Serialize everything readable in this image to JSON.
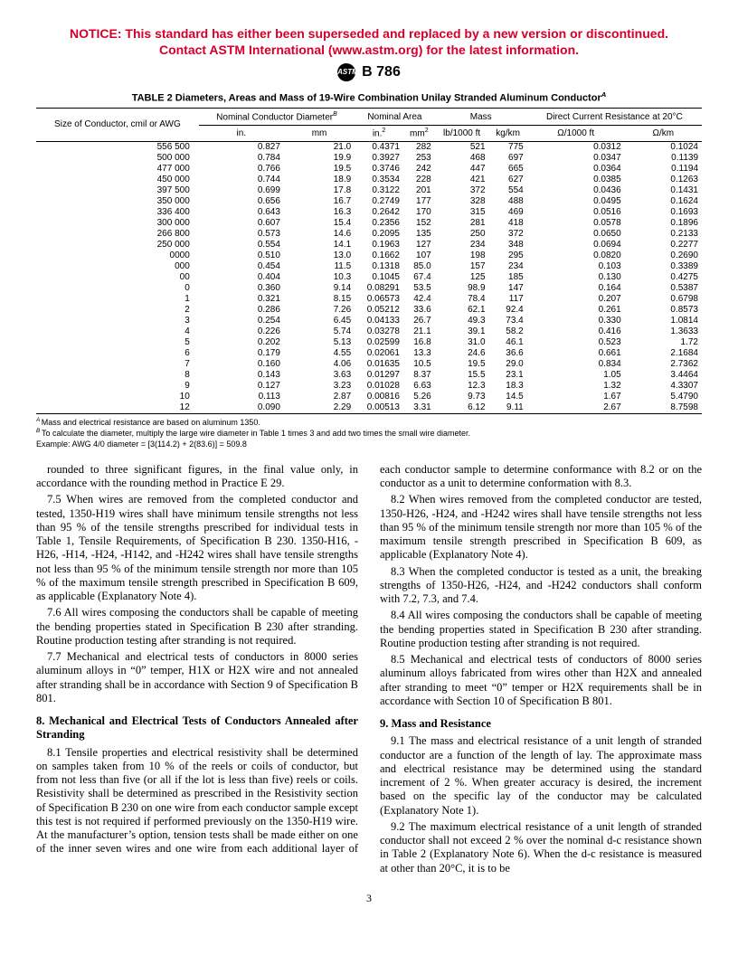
{
  "notice": {
    "line1": "NOTICE: This standard has either been superseded and replaced by a new version or discontinued.",
    "line2": "Contact ASTM International (www.astm.org) for the latest information."
  },
  "header": {
    "logo_text": "ASTM",
    "std_label": "B 786"
  },
  "table": {
    "title_pre": "TABLE 2  Diameters, Areas and Mass of 19-Wire Combination Unilay Stranded Aluminum Conductor",
    "title_sup": "A",
    "group_headers": {
      "size": "Size of Conductor, cmil or AWG",
      "diameter": "Nominal Conductor Diameter",
      "diameter_sup": "B",
      "area": "Nominal Area",
      "mass": "Mass",
      "dcr": "Direct Current Resistance at 20°C"
    },
    "unit_headers": [
      "in.",
      "mm",
      "in.²",
      "mm²",
      "lb/1000 ft",
      "kg/km",
      "Ω/1000 ft",
      "Ω/km"
    ],
    "rows": [
      [
        "556 500",
        "0.827",
        "21.0",
        "0.4371",
        "282",
        "521",
        "775",
        "0.0312",
        "0.1024"
      ],
      [
        "500 000",
        "0.784",
        "19.9",
        "0.3927",
        "253",
        "468",
        "697",
        "0.0347",
        "0.1139"
      ],
      [
        "477 000",
        "0.766",
        "19.5",
        "0.3746",
        "242",
        "447",
        "665",
        "0.0364",
        "0.1194"
      ],
      [
        "450 000",
        "0.744",
        "18.9",
        "0.3534",
        "228",
        "421",
        "627",
        "0.0385",
        "0.1263"
      ],
      [
        "397 500",
        "0.699",
        "17.8",
        "0.3122",
        "201",
        "372",
        "554",
        "0.0436",
        "0.1431"
      ],
      [
        "350 000",
        "0.656",
        "16.7",
        "0.2749",
        "177",
        "328",
        "488",
        "0.0495",
        "0.1624"
      ],
      [
        "336 400",
        "0.643",
        "16.3",
        "0.2642",
        "170",
        "315",
        "469",
        "0.0516",
        "0.1693"
      ],
      [
        "300 000",
        "0.607",
        "15.4",
        "0.2356",
        "152",
        "281",
        "418",
        "0.0578",
        "0.1896"
      ],
      [
        "266 800",
        "0.573",
        "14.6",
        "0.2095",
        "135",
        "250",
        "372",
        "0.0650",
        "0.2133"
      ],
      [
        "250 000",
        "0.554",
        "14.1",
        "0.1963",
        "127",
        "234",
        "348",
        "0.0694",
        "0.2277"
      ],
      [
        "0000",
        "0.510",
        "13.0",
        "0.1662",
        "107",
        "198",
        "295",
        "0.0820",
        "0.2690"
      ],
      [
        "000",
        "0.454",
        "11.5",
        "0.1318",
        "85.0",
        "157",
        "234",
        "0.103",
        "0.3389"
      ],
      [
        "00",
        "0.404",
        "10.3",
        "0.1045",
        "67.4",
        "125",
        "185",
        "0.130",
        "0.4275"
      ],
      [
        "0",
        "0.360",
        "9.14",
        "0.08291",
        "53.5",
        "98.9",
        "147",
        "0.164",
        "0.5387"
      ],
      [
        "1",
        "0.321",
        "8.15",
        "0.06573",
        "42.4",
        "78.4",
        "117",
        "0.207",
        "0.6798"
      ],
      [
        "2",
        "0.286",
        "7.26",
        "0.05212",
        "33.6",
        "62.1",
        "92.4",
        "0.261",
        "0.8573"
      ],
      [
        "3",
        "0.254",
        "6.45",
        "0.04133",
        "26.7",
        "49.3",
        "73.4",
        "0.330",
        "1.0814"
      ],
      [
        "4",
        "0.226",
        "5.74",
        "0.03278",
        "21.1",
        "39.1",
        "58.2",
        "0.416",
        "1.3633"
      ],
      [
        "5",
        "0.202",
        "5.13",
        "0.02599",
        "16.8",
        "31.0",
        "46.1",
        "0.523",
        "1.72"
      ],
      [
        "6",
        "0.179",
        "4.55",
        "0.02061",
        "13.3",
        "24.6",
        "36.6",
        "0.661",
        "2.1684"
      ],
      [
        "7",
        "0.160",
        "4.06",
        "0.01635",
        "10.5",
        "19.5",
        "29.0",
        "0.834",
        "2.7362"
      ],
      [
        "8",
        "0.143",
        "3.63",
        "0.01297",
        "8.37",
        "15.5",
        "23.1",
        "1.05",
        "3.4464"
      ],
      [
        "9",
        "0.127",
        "3.23",
        "0.01028",
        "6.63",
        "12.3",
        "18.3",
        "1.32",
        "4.3307"
      ],
      [
        "10",
        "0.113",
        "2.87",
        "0.00816",
        "5.26",
        "9.73",
        "14.5",
        "1.67",
        "5.4790"
      ],
      [
        "12",
        "0.090",
        "2.29",
        "0.00513",
        "3.31",
        "6.12",
        "9.11",
        "2.67",
        "8.7598"
      ]
    ],
    "footnote_a": "Mass and electrical resistance are based on aluminum 1350.",
    "footnote_b": "To calculate the diameter, multiply the large wire diameter in Table 1 times 3 and add two times the small wire diameter.",
    "example": "Example: AWG 4/0 diameter = [3(114.2) + 2(83.6)] = 509.8"
  },
  "body": {
    "p1": "rounded to three significant figures, in the final value only, in accordance with the rounding method in Practice E 29.",
    "p2": "7.5  When wires are removed from the completed conductor and tested, 1350-H19 wires shall have minimum tensile strengths not less than 95 % of the tensile strengths prescribed for individual tests in Table 1, Tensile Requirements, of Specification B 230. 1350-H16, -H26, -H14, -H24, -H142, and -H242 wires shall have tensile strengths not less than 95 % of the minimum tensile strength nor more than 105 % of the maximum tensile strength prescribed in Specification B 609, as applicable (Explanatory Note 4).",
    "p3": "7.6  All wires composing the conductors shall be capable of meeting the bending properties stated in Specification B 230 after stranding. Routine production testing after stranding is not required.",
    "p4": "7.7  Mechanical and electrical tests of conductors in 8000 series aluminum alloys in “0” temper, H1X or H2X wire and not annealed after stranding shall be in accordance with Section 9 of Specification B 801.",
    "h8": "8.  Mechanical and Electrical Tests of Conductors Annealed after Stranding",
    "p5": "8.1  Tensile properties and electrical resistivity shall be determined on samples taken from 10 % of the reels or coils of conductor, but from not less than five (or all if the lot is less than five) reels or coils. Resistivity shall be determined as prescribed in the Resistivity section of Specification B 230 on one wire from each conductor sample except this test is not required if performed previously on the 1350-H19 wire. At the manufacturer’s option, tension tests shall be made either on one of the inner seven wires and one wire from each additional layer of each conductor sample to determine conformance with 8.2 or on the conductor as a unit to determine conformation with 8.3.",
    "p6": "8.2  When wires removed from the completed conductor are tested, 1350-H26, -H24, and -H242 wires shall have tensile strengths not less than 95 % of the minimum tensile strength nor more than 105 % of the maximum tensile strength prescribed in Specification B 609, as applicable (Explanatory Note 4).",
    "p7": "8.3  When the completed conductor is tested as a unit, the breaking strengths of 1350-H26, -H24, and -H242 conductors shall conform with 7.2, 7.3, and 7.4.",
    "p8": "8.4  All wires composing the conductors shall be capable of meeting the bending properties stated in Specification B 230 after stranding. Routine production testing after stranding is not required.",
    "p9": "8.5  Mechanical and electrical tests of conductors of 8000 series aluminum alloys fabricated from wires other than H2X and annealed after stranding to meet “0” temper or H2X requirements shall be in accordance with Section 10 of Specification B 801.",
    "h9": "9.  Mass and Resistance",
    "p10": "9.1  The mass and electrical resistance of a unit length of stranded conductor are a function of the length of lay. The approximate mass and electrical resistance may be determined using the standard increment of 2 %. When greater accuracy is desired, the increment based on the specific lay of the conductor may be calculated (Explanatory Note 1).",
    "p11": "9.2  The maximum electrical resistance of a unit length of stranded conductor shall not exceed 2 % over the nominal d-c resistance shown in Table 2 (Explanatory Note 6). When the d-c resistance is measured at other than 20°C, it is to be"
  },
  "page_number": "3"
}
